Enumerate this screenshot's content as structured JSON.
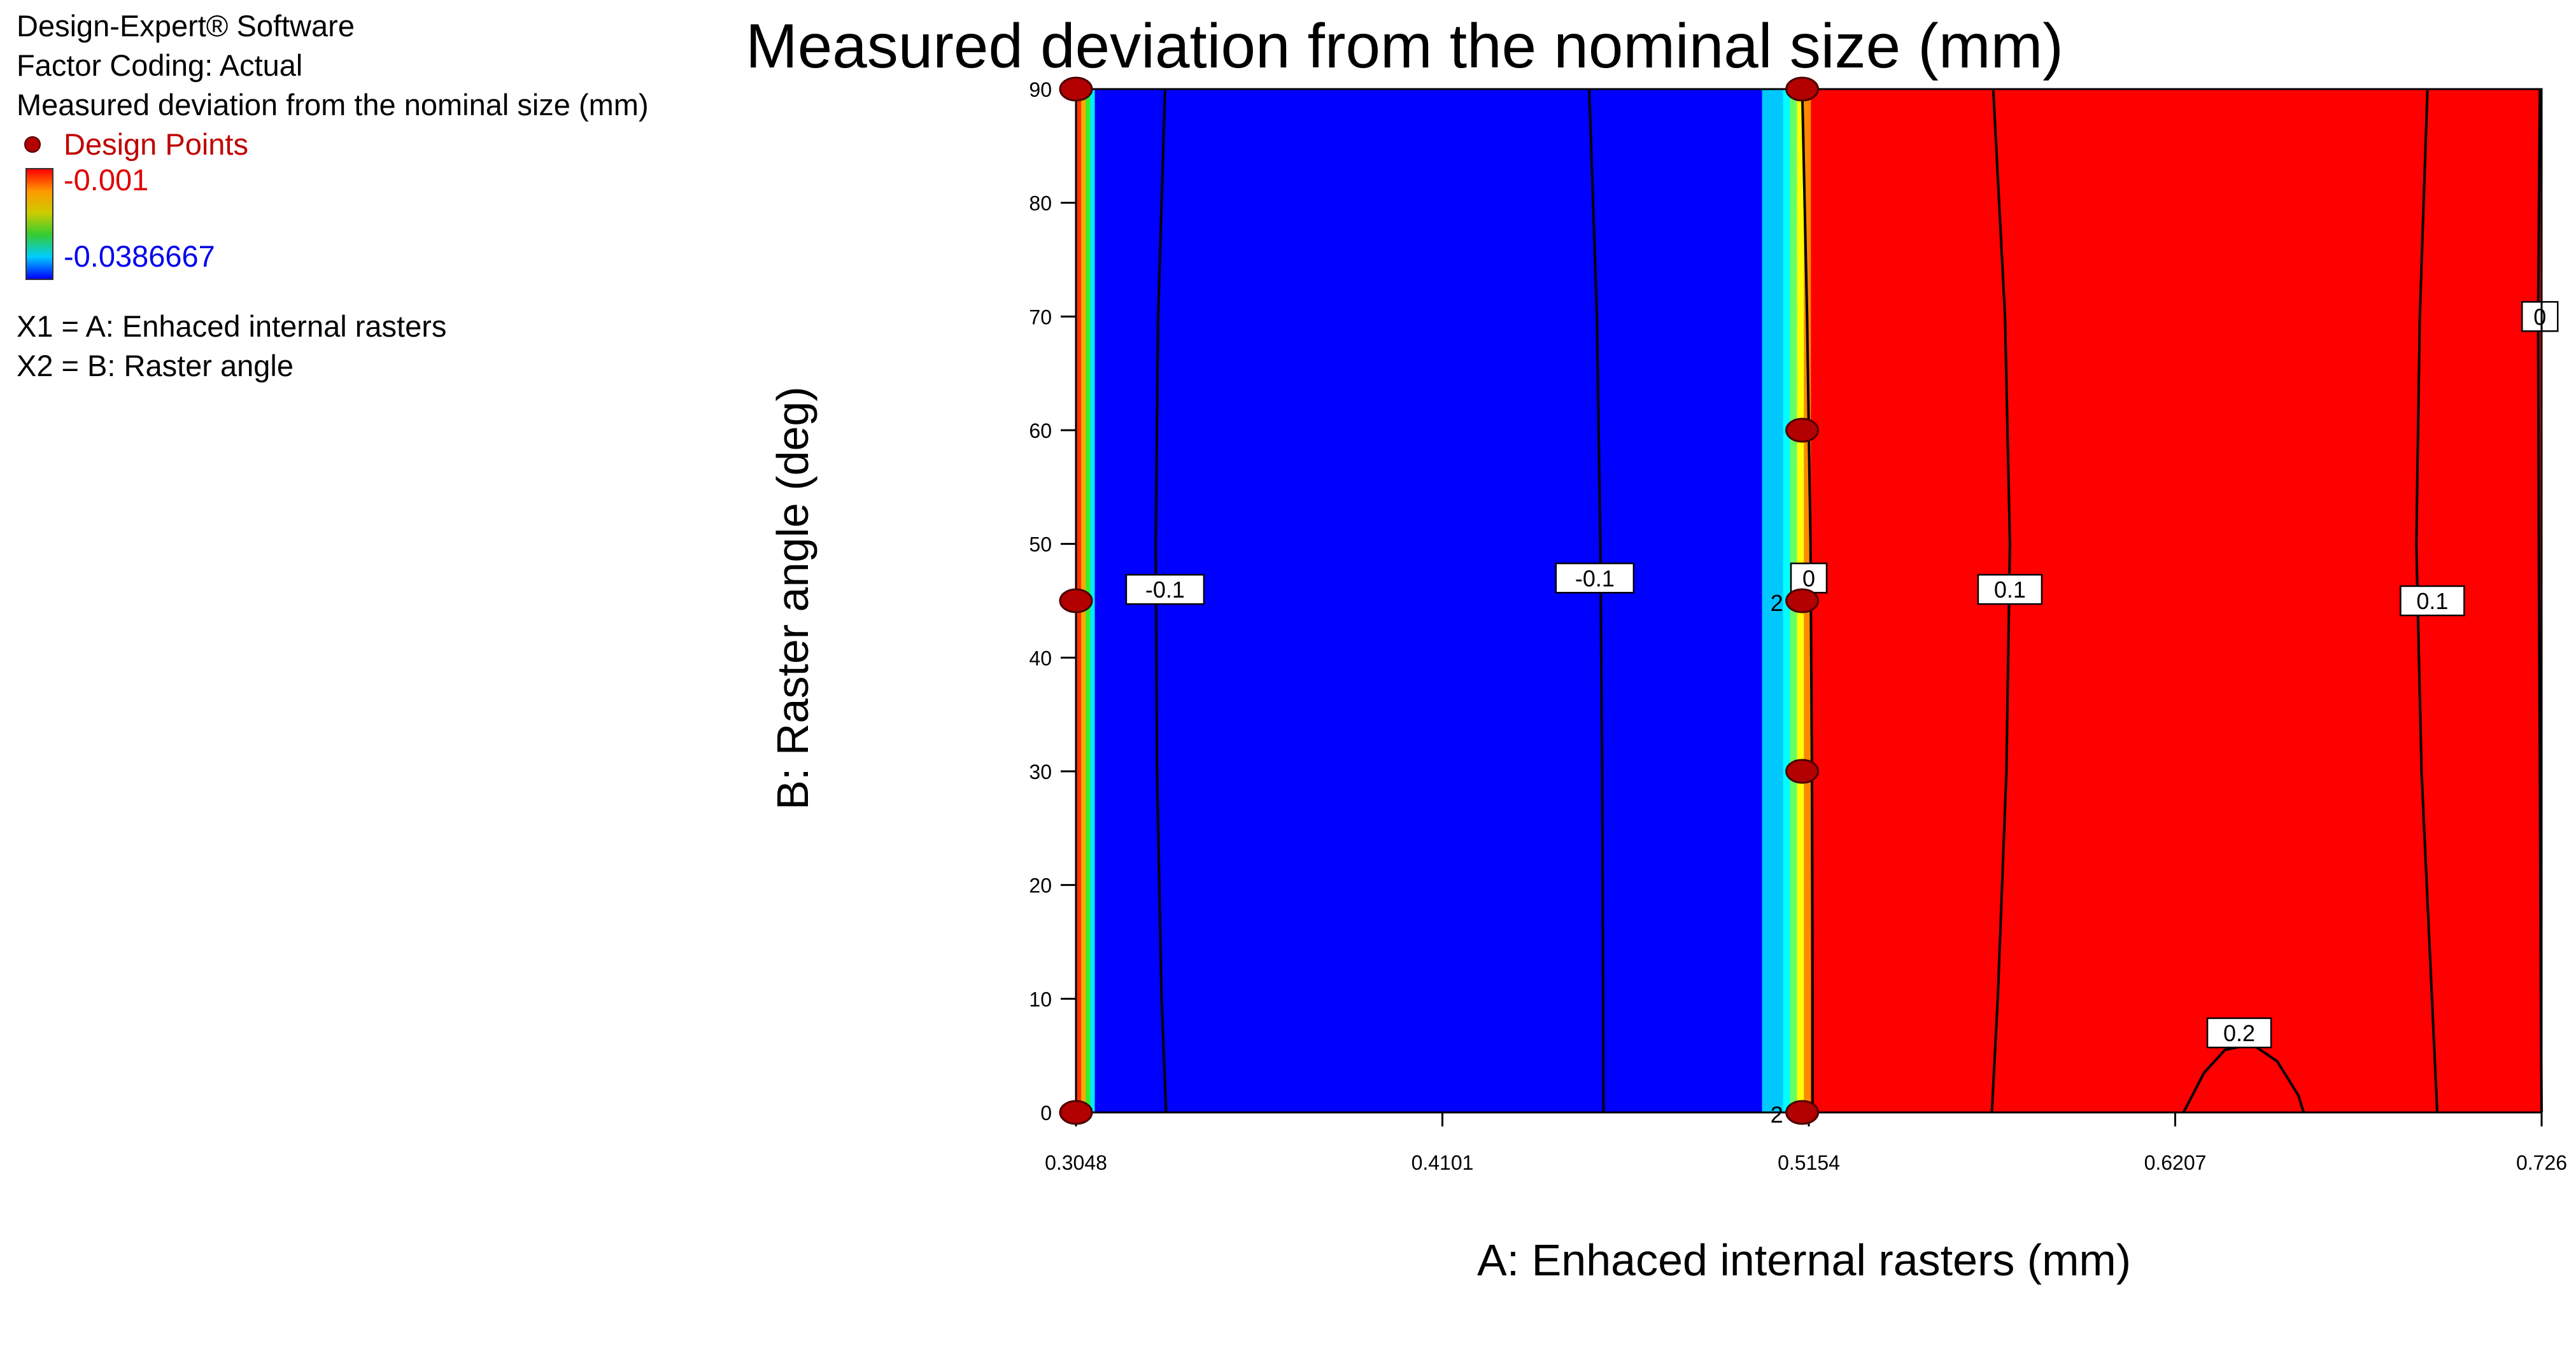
{
  "info": {
    "software": "Design-Expert® Software",
    "coding": "Factor Coding: Actual",
    "response": "Measured deviation from the nominal size (mm)",
    "design_points_label": "Design Points",
    "scale_high": "-0.001",
    "scale_low": "-0.0386667",
    "x1": "X1 = A: Enhaced internal rasters",
    "x2": "X2 = B: Raster angle"
  },
  "colors": {
    "high": "#ff0000",
    "low": "#0000ff",
    "design_point": "#b30000"
  },
  "chart_data": {
    "type": "contour",
    "title": "Measured deviation from the nominal size (mm)",
    "xlabel": "A: Enhaced internal rasters (mm)",
    "ylabel": "B: Raster angle (deg)",
    "xlim": [
      0.3048,
      0.726
    ],
    "ylim": [
      0,
      90
    ],
    "x_ticks": [
      "0.3048",
      "0.4101",
      "0.5154",
      "0.6207",
      "0.726"
    ],
    "y_ticks": [
      "0",
      "10",
      "20",
      "30",
      "40",
      "50",
      "60",
      "70",
      "80",
      "90"
    ],
    "regions": [
      {
        "x0": 0.3048,
        "x1": 0.31,
        "color": "#ff6600"
      },
      {
        "x0": 0.31,
        "x1": 0.502,
        "color": "#0000ff"
      },
      {
        "x0": 0.502,
        "x1": 0.515,
        "color": "#00c8ff"
      },
      {
        "x0": 0.515,
        "x1": 0.726,
        "color": "#ff0000"
      }
    ],
    "contours": [
      {
        "label": "-0.1",
        "x": [
          0.3304,
          0.3284,
          0.3277,
          0.3281,
          0.3294,
          0.3307
        ],
        "y": [
          90,
          70,
          50,
          30,
          10,
          0
        ],
        "label_at": [
          0.3304,
          46
        ]
      },
      {
        "label": "-0.1",
        "x": [
          0.4523,
          0.4545,
          0.4555,
          0.456,
          0.4563,
          0.4564
        ],
        "y": [
          90,
          70,
          50,
          30,
          10,
          0
        ],
        "label_at": [
          0.4539,
          47
        ]
      },
      {
        "label": "0",
        "x": [
          0.5135,
          0.5149,
          0.5159,
          0.5163,
          0.5165,
          0.5165
        ],
        "y": [
          90,
          70,
          50,
          30,
          10,
          0
        ],
        "label_at": [
          0.5154,
          47
        ]
      },
      {
        "label": "0.1",
        "x": [
          0.5684,
          0.5718,
          0.5732,
          0.5722,
          0.5697,
          0.568
        ],
        "y": [
          90,
          70,
          50,
          30,
          10,
          0
        ],
        "label_at": [
          0.5732,
          46
        ]
      },
      {
        "label": "0.1",
        "x": [
          0.6932,
          0.691,
          0.69,
          0.6915,
          0.6945,
          0.696
        ],
        "y": [
          90,
          70,
          50,
          30,
          10,
          0
        ],
        "label_at": [
          0.6946,
          45
        ]
      },
      {
        "label": "0",
        "x": [
          0.7255,
          0.725,
          0.7252,
          0.7255,
          0.7258,
          0.726
        ],
        "y": [
          90,
          70,
          50,
          30,
          10,
          0
        ],
        "label_at": [
          0.7255,
          70
        ]
      },
      {
        "label": "0.2",
        "x": [
          0.6231,
          0.629,
          0.635,
          0.6428,
          0.65,
          0.6561,
          0.6576
        ],
        "y": [
          0,
          3.5,
          5.5,
          6.0,
          4.5,
          1.5,
          0
        ],
        "label_at": [
          0.6391,
          7
        ]
      }
    ],
    "design_points": [
      {
        "x": 0.3048,
        "y": 90
      },
      {
        "x": 0.3048,
        "y": 45
      },
      {
        "x": 0.3048,
        "y": 0
      },
      {
        "x": 0.5135,
        "y": 90
      },
      {
        "x": 0.5135,
        "y": 60
      },
      {
        "x": 0.5135,
        "y": 45,
        "count": "2"
      },
      {
        "x": 0.5135,
        "y": 30
      },
      {
        "x": 0.5135,
        "y": 0,
        "count": "2"
      }
    ]
  }
}
